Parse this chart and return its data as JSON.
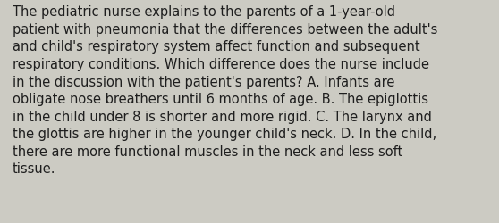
{
  "text": "The pediatric nurse explains to the parents of a 1-year-old\npatient with pneumonia that the differences between the adult's\nand child's respiratory system affect function and subsequent\nrespiratory conditions. Which difference does the nurse include\nin the discussion with the patient's parents? A. Infants are\nobligate nose breathers until 6 months of age. B. The epiglottis\nin the child under 8 is shorter and more rigid. C. The larynx and\nthe glottis are higher in the younger child's neck. D. In the child,\nthere are more functional muscles in the neck and less soft\ntissue.",
  "background_color": "#cccbc3",
  "text_color": "#1e1e1e",
  "font_size": 10.5,
  "fig_width": 5.58,
  "fig_height": 2.51,
  "dpi": 100
}
